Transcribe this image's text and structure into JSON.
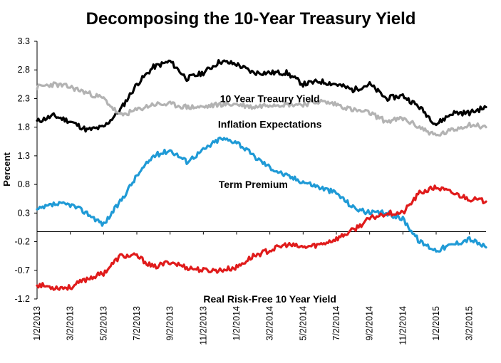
{
  "chart_data": {
    "type": "line",
    "title": "Decomposing the 10-Year Treasury Yield",
    "xlabel": "",
    "ylabel": "Percent",
    "ylim": [
      -1.2,
      3.3
    ],
    "yticks": [
      3.3,
      2.8,
      2.3,
      1.8,
      1.3,
      0.8,
      0.3,
      -0.2,
      -0.7,
      -1.2
    ],
    "ytick_labels": [
      "3.3",
      "2.8",
      "2.3",
      "1.8",
      "1.3",
      "0.8",
      "0.3",
      "-0.2",
      "-0.7",
      "-1.2"
    ],
    "x_tick_labels": [
      "1/2/2013",
      "3/2/2013",
      "5/2/2013",
      "7/2/2013",
      "9/2/2013",
      "11/2/2013",
      "1/2/2014",
      "3/2/2014",
      "5/2/2014",
      "7/2/2014",
      "9/2/2014",
      "11/2/2014",
      "1/2/2015",
      "3/2/2015"
    ],
    "x_months": [
      "2013-01",
      "2013-02",
      "2013-03",
      "2013-04",
      "2013-05",
      "2013-06",
      "2013-07",
      "2013-08",
      "2013-09",
      "2013-10",
      "2013-11",
      "2013-12",
      "2014-01",
      "2014-02",
      "2014-03",
      "2014-04",
      "2014-05",
      "2014-06",
      "2014-07",
      "2014-08",
      "2014-09",
      "2014-10",
      "2014-11",
      "2014-12",
      "2015-01",
      "2015-02",
      "2015-03",
      "2015-04"
    ],
    "grid": false,
    "legend": "none",
    "series": [
      {
        "name": "10 Year Treaury Yield",
        "color": "#000000",
        "values": [
          1.9,
          2.0,
          1.9,
          1.75,
          1.8,
          2.1,
          2.55,
          2.85,
          2.95,
          2.65,
          2.75,
          2.95,
          2.9,
          2.75,
          2.75,
          2.75,
          2.55,
          2.6,
          2.55,
          2.45,
          2.55,
          2.3,
          2.35,
          2.15,
          1.85,
          2.05,
          2.05,
          2.15
        ]
      },
      {
        "name": "Inflation Expectations",
        "color": "#b3b3b3",
        "values": [
          2.5,
          2.55,
          2.5,
          2.4,
          2.3,
          2.0,
          2.1,
          2.2,
          2.2,
          2.15,
          2.15,
          2.2,
          2.2,
          2.15,
          2.2,
          2.2,
          2.2,
          2.25,
          2.2,
          2.1,
          2.05,
          1.9,
          1.95,
          1.8,
          1.65,
          1.75,
          1.85,
          1.8
        ]
      },
      {
        "name": "Term Premium",
        "color": "#1f9ad6",
        "values": [
          0.35,
          0.45,
          0.45,
          0.3,
          0.1,
          0.5,
          0.95,
          1.3,
          1.4,
          1.2,
          1.4,
          1.6,
          1.55,
          1.3,
          1.1,
          0.95,
          0.85,
          0.75,
          0.65,
          0.4,
          0.3,
          0.3,
          0.2,
          -0.2,
          -0.35,
          -0.25,
          -0.15,
          -0.3
        ]
      },
      {
        "name": "Real Risk-Free 10 Year Yield",
        "color": "#e01b1b",
        "values": [
          -0.95,
          -1.0,
          -1.0,
          -0.85,
          -0.75,
          -0.45,
          -0.45,
          -0.65,
          -0.55,
          -0.65,
          -0.7,
          -0.7,
          -0.65,
          -0.45,
          -0.35,
          -0.25,
          -0.3,
          -0.25,
          -0.15,
          0.0,
          0.2,
          0.3,
          0.3,
          0.65,
          0.75,
          0.65,
          0.55,
          0.5
        ]
      }
    ],
    "annotations": [
      {
        "text": "10 Year Treaury Yield",
        "x_month_index": 14,
        "y": 2.3
      },
      {
        "text": "Inflation Expectations",
        "x_month_index": 14,
        "y": 1.85
      },
      {
        "text": "Term Premium",
        "x_month_index": 13,
        "y": 0.8
      },
      {
        "text": "Real Risk-Free 10 Year Yield",
        "x_month_index": 14,
        "y": -1.2
      }
    ]
  }
}
